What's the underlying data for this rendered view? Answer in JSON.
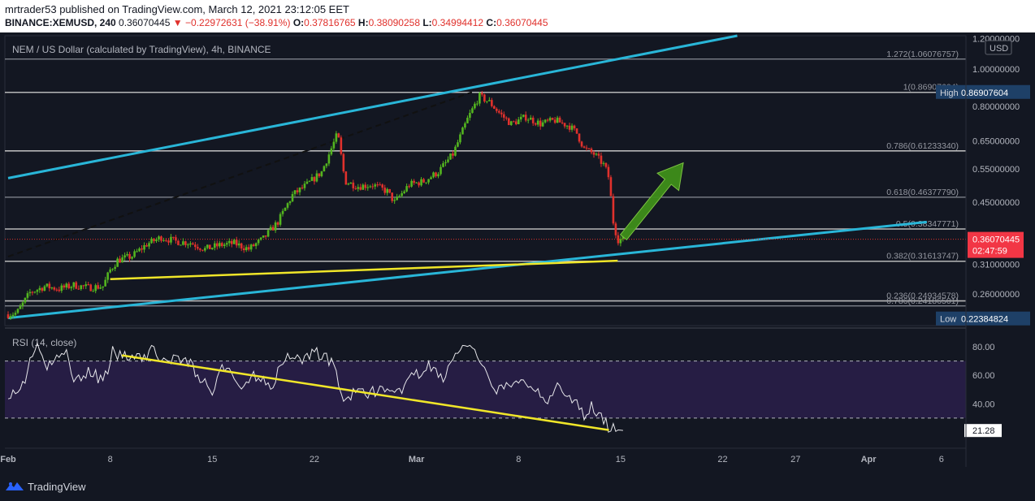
{
  "header": {
    "publisher": "mrtrader53 published on TradingView.com, March 12, 2021 23:12:05 EET",
    "symbol": "BINANCE:XEMUSD, 240",
    "last": "0.36070445",
    "change_arrow": "▼",
    "change": "−0.22972631 (−38.91%)",
    "o_label": "O:",
    "o": "0.37816765",
    "h_label": "H:",
    "h": "0.38090258",
    "l_label": "L:",
    "l": "0.34994412",
    "c_label": "C:",
    "c": "0.36070445"
  },
  "footer": {
    "brand": "TradingView"
  },
  "colors": {
    "background": "#131722",
    "up": "#53b51f",
    "down": "#e0312c",
    "channel": "#29b6d8",
    "trend": "#f0e629",
    "arrow": "#3e8e1a",
    "rsi": "#e6e6ea",
    "rsi_band": "#2a1f4a"
  },
  "chart_data": [
    {
      "type": "candlestick",
      "title": "NEM / US Dollar (calculated by TradingView), 4h, BINANCE",
      "currency": "USD",
      "scale": "log",
      "ylim": [
        0.215,
        1.22
      ],
      "price_ticks": [
        "1.20000000",
        "1.00000000",
        "0.80000000",
        "0.65000000",
        "0.55000000",
        "0.45000000",
        "0.31000000",
        "0.26000000"
      ],
      "price_tick_values": [
        1.2,
        1.0,
        0.8,
        0.65,
        0.55,
        0.45,
        0.31,
        0.26
      ],
      "x_ticks": [
        "Feb",
        "8",
        "15",
        "22",
        "Mar",
        "8",
        "15",
        "22",
        "27",
        "Apr",
        "6"
      ],
      "x_tick_days": [
        0,
        7,
        14,
        21,
        28,
        35,
        42,
        49,
        54,
        59,
        64
      ],
      "x_range_days": [
        0,
        65
      ],
      "close_path": [
        [
          0,
          0.23
        ],
        [
          0.6,
          0.232
        ],
        [
          1.5,
          0.262
        ],
        [
          2.5,
          0.272
        ],
        [
          3.5,
          0.268
        ],
        [
          4.5,
          0.274
        ],
        [
          5.5,
          0.27
        ],
        [
          6.5,
          0.272
        ],
        [
          7.0,
          0.3
        ],
        [
          7.5,
          0.318
        ],
        [
          8.5,
          0.326
        ],
        [
          9.5,
          0.35
        ],
        [
          10.5,
          0.365
        ],
        [
          11.5,
          0.356
        ],
        [
          12.5,
          0.353
        ],
        [
          13.5,
          0.34
        ],
        [
          14.5,
          0.348
        ],
        [
          15.5,
          0.352
        ],
        [
          16.5,
          0.34
        ],
        [
          17.5,
          0.362
        ],
        [
          18.5,
          0.4
        ],
        [
          19.5,
          0.47
        ],
        [
          20.5,
          0.5
        ],
        [
          21.5,
          0.54
        ],
        [
          22.0,
          0.6
        ],
        [
          22.6,
          0.68
        ],
        [
          23.1,
          0.51
        ],
        [
          24.0,
          0.495
        ],
        [
          25.0,
          0.5
        ],
        [
          26.0,
          0.48
        ],
        [
          26.5,
          0.45
        ],
        [
          27.5,
          0.5
        ],
        [
          28.5,
          0.51
        ],
        [
          29.5,
          0.54
        ],
        [
          30.5,
          0.6
        ],
        [
          31.5,
          0.74
        ],
        [
          32.3,
          0.85
        ],
        [
          33.0,
          0.82
        ],
        [
          33.8,
          0.76
        ],
        [
          34.5,
          0.72
        ],
        [
          35.5,
          0.75
        ],
        [
          36.5,
          0.72
        ],
        [
          37.5,
          0.735
        ],
        [
          38.5,
          0.71
        ],
        [
          39.0,
          0.68
        ],
        [
          39.5,
          0.62
        ],
        [
          40.2,
          0.6
        ],
        [
          40.9,
          0.56
        ],
        [
          41.2,
          0.52
        ],
        [
          41.5,
          0.4
        ],
        [
          41.8,
          0.36
        ],
        [
          42.2,
          0.3607
        ]
      ],
      "last_price": "0.36070445",
      "countdown": "02:47:59",
      "high_label": "High",
      "high": "0.86907604",
      "high_value": 0.86907604,
      "low_label": "Low",
      "low": "0.22384824",
      "low_value": 0.22384824,
      "fib_levels": [
        {
          "label": "1.272(1.06076757)",
          "value": 1.0608,
          "color": "#9598a1"
        },
        {
          "label": "1(0.86907604)",
          "value": 0.8691,
          "color": "#c9c9c9"
        },
        {
          "label": "0.786(0.61233340)",
          "value": 0.6123,
          "color": "#c9c9c9"
        },
        {
          "label": "0.618(0.46377790)",
          "value": 0.4638,
          "color": "#9598a1"
        },
        {
          "label": "0.5(0.38347771)",
          "value": 0.3835,
          "color": "#c9c9c9"
        },
        {
          "label": "0.382(0.31613747)",
          "value": 0.3161,
          "color": "#c9c9c9"
        },
        {
          "label": "0.236(0.24934578)",
          "value": 0.2493,
          "color": "#c9c9c9"
        },
        {
          "label": "0.786(0.24186501)",
          "value": 0.2419,
          "color": "#9598a1"
        }
      ],
      "channel_upper": [
        [
          0,
          0.52
        ],
        [
          50.0,
          1.22
        ]
      ],
      "channel_lower": [
        [
          0,
          0.225
        ],
        [
          63.0,
          0.4
        ]
      ],
      "dashed_line": [
        [
          0,
          0.325
        ],
        [
          31.8,
          0.87
        ]
      ],
      "support_line": [
        [
          7.0,
          0.284
        ],
        [
          41.8,
          0.317
        ]
      ],
      "up_arrow": [
        [
          42.2,
          0.365
        ],
        [
          46.3,
          0.57
        ]
      ]
    },
    {
      "type": "line",
      "title": "RSI (14, close)",
      "ylim": [
        10,
        92
      ],
      "ticks": [
        "80.00",
        "60.00",
        "40.00"
      ],
      "tick_values": [
        80,
        60,
        40
      ],
      "band": [
        30,
        70
      ],
      "current": "21.28",
      "current_value": 21.28,
      "rsi_path": [
        [
          0,
          48
        ],
        [
          0.6,
          46
        ],
        [
          1.2,
          58
        ],
        [
          1.6,
          75
        ],
        [
          2.0,
          82
        ],
        [
          2.6,
          64
        ],
        [
          3.2,
          70
        ],
        [
          4.0,
          76
        ],
        [
          4.6,
          55
        ],
        [
          5.5,
          64
        ],
        [
          6.2,
          58
        ],
        [
          6.9,
          60
        ],
        [
          7.2,
          78
        ],
        [
          7.8,
          72
        ],
        [
          8.6,
          76
        ],
        [
          9.5,
          72
        ],
        [
          10.0,
          80
        ],
        [
          10.8,
          66
        ],
        [
          11.5,
          74
        ],
        [
          12.5,
          68
        ],
        [
          13.3,
          56
        ],
        [
          14.2,
          48
        ],
        [
          14.5,
          62
        ],
        [
          15.0,
          66
        ],
        [
          15.8,
          52
        ],
        [
          16.6,
          58
        ],
        [
          17.4,
          60
        ],
        [
          18.0,
          52
        ],
        [
          18.8,
          68
        ],
        [
          19.5,
          76
        ],
        [
          20.2,
          70
        ],
        [
          21.0,
          78
        ],
        [
          21.8,
          72
        ],
        [
          22.5,
          65
        ],
        [
          22.8,
          44
        ],
        [
          23.5,
          46
        ],
        [
          24.5,
          48
        ],
        [
          25.5,
          50
        ],
        [
          26.5,
          44
        ],
        [
          27.2,
          54
        ],
        [
          28.0,
          60
        ],
        [
          28.8,
          66
        ],
        [
          29.8,
          58
        ],
        [
          30.8,
          76
        ],
        [
          31.4,
          82
        ],
        [
          32.2,
          72
        ],
        [
          32.8,
          58
        ],
        [
          33.6,
          50
        ],
        [
          34.5,
          52
        ],
        [
          35.5,
          56
        ],
        [
          36.5,
          48
        ],
        [
          37.0,
          44
        ],
        [
          37.5,
          52
        ],
        [
          38.3,
          44
        ],
        [
          39.0,
          40
        ],
        [
          39.4,
          32
        ],
        [
          40.0,
          38
        ],
        [
          40.5,
          30
        ],
        [
          40.8,
          30
        ],
        [
          41.2,
          24
        ],
        [
          41.6,
          22
        ],
        [
          42.2,
          21.28
        ]
      ],
      "trend_line": [
        [
          7.8,
          74
        ],
        [
          41.2,
          21.6
        ]
      ]
    }
  ]
}
